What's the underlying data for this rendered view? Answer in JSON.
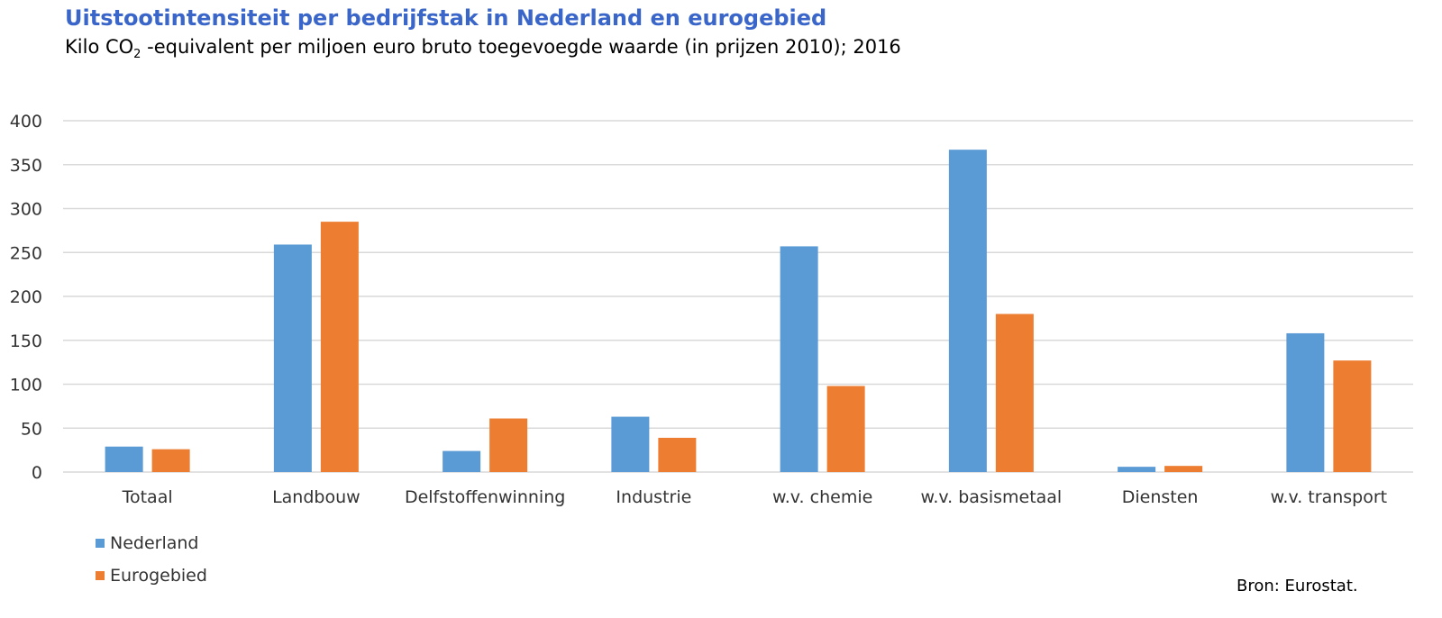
{
  "header": {
    "title": "Uitstootintensiteit per bedrijfstak in Nederland en eurogebied",
    "subtitle_pre": "Kilo CO",
    "subtitle_sub": "2",
    "subtitle_post": " -equivalent per miljoen euro bruto toegevoegde waarde (in prijzen 2010); 2016"
  },
  "source": "Bron: Eurostat.",
  "colors": {
    "nederland": "#5b9bd5",
    "eurogebied": "#ed7d31",
    "grid": "#d9d9d9"
  },
  "chart_data": {
    "type": "bar",
    "categories": [
      "Totaal",
      "Landbouw",
      "Delfstoffenwinning",
      "Industrie",
      "w.v. chemie",
      "w.v. basismetaal",
      "Diensten",
      "w.v. transport"
    ],
    "series": [
      {
        "name": "Nederland",
        "values": [
          29,
          259,
          24,
          63,
          257,
          367,
          6,
          158
        ]
      },
      {
        "name": "Eurogebied",
        "values": [
          26,
          285,
          61,
          39,
          98,
          180,
          7,
          127
        ]
      }
    ],
    "ylim": [
      0,
      400
    ],
    "yticks": [
      0,
      50,
      100,
      150,
      200,
      250,
      300,
      350,
      400
    ],
    "grid": true,
    "legend": "bottom-left"
  }
}
